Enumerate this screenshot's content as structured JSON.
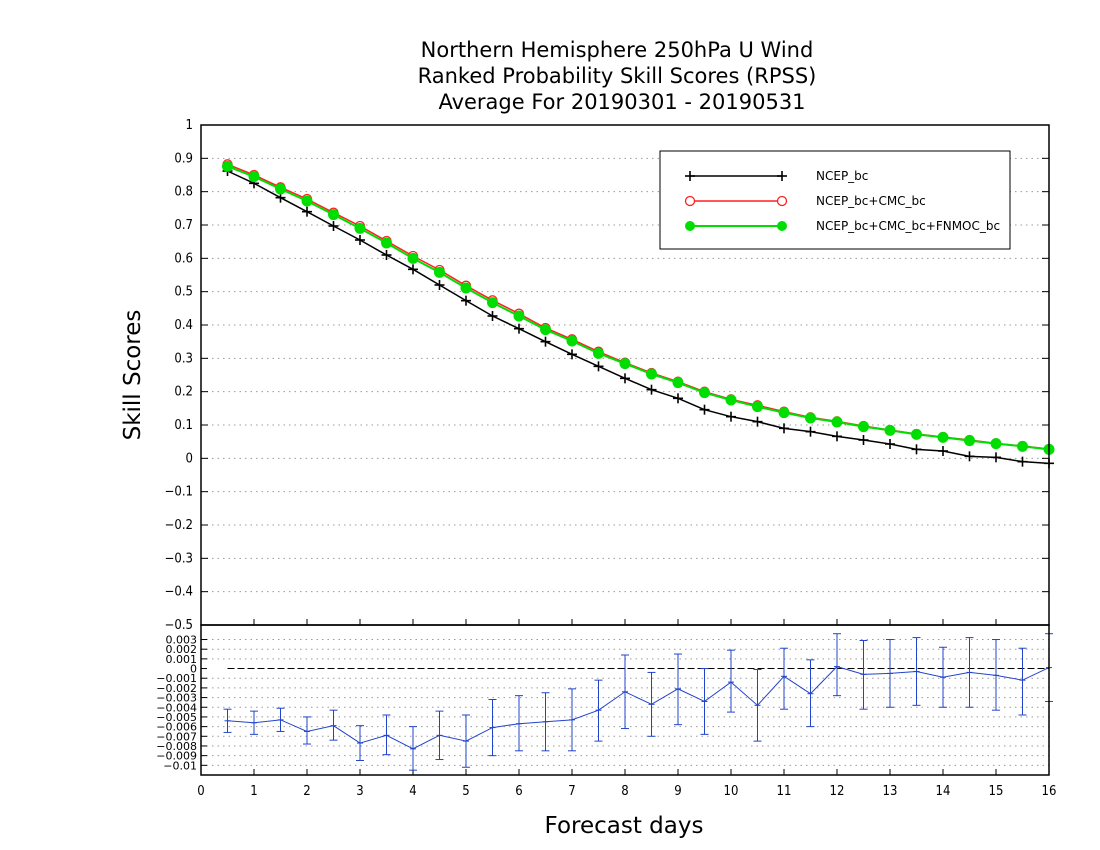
{
  "chart_data": [
    {
      "type": "line",
      "title": [
        "Northern Hemisphere 250hPa U Wind",
        "Ranked Probability Skill Scores (RPSS)",
        "Average For 20190301 - 20190531"
      ],
      "xlabel": "Forecast days",
      "ylabel": "Skill Scores",
      "xlim": [
        0,
        16
      ],
      "ylim": [
        -0.5,
        1
      ],
      "x_ticks": [
        0,
        1,
        2,
        3,
        4,
        5,
        6,
        7,
        8,
        9,
        10,
        11,
        12,
        13,
        14,
        15,
        16
      ],
      "y_ticks": [
        1,
        0.9,
        0.8,
        0.7,
        0.6,
        0.5,
        0.4,
        0.3,
        0.2,
        0.1,
        0,
        -0.1,
        -0.2,
        -0.3,
        -0.4,
        -0.5
      ],
      "grid": true,
      "legend_position": "top-right",
      "x": [
        0.5,
        1,
        1.5,
        2,
        2.5,
        3,
        3.5,
        4,
        4.5,
        5,
        5.5,
        6,
        6.5,
        7,
        7.5,
        8,
        8.5,
        9,
        9.5,
        10,
        10.5,
        11,
        11.5,
        12,
        12.5,
        13,
        13.5,
        14,
        14.5,
        15,
        15.5,
        16
      ],
      "series": [
        {
          "name": "NCEP_bc",
          "color": "#000000",
          "marker": "plus",
          "values": [
            0.862,
            0.825,
            0.782,
            0.74,
            0.697,
            0.655,
            0.61,
            0.567,
            0.52,
            0.473,
            0.427,
            0.389,
            0.35,
            0.312,
            0.276,
            0.24,
            0.206,
            0.18,
            0.146,
            0.125,
            0.11,
            0.09,
            0.08,
            0.066,
            0.055,
            0.043,
            0.027,
            0.022,
            0.006,
            0.003,
            -0.01,
            -0.015
          ]
        },
        {
          "name": "NCEP_bc+CMC_bc",
          "color": "#ff2020",
          "marker": "open-circle",
          "values": [
            0.882,
            0.85,
            0.813,
            0.778,
            0.737,
            0.697,
            0.652,
            0.607,
            0.565,
            0.518,
            0.474,
            0.434,
            0.391,
            0.357,
            0.32,
            0.287,
            0.256,
            0.23,
            0.2,
            0.177,
            0.159,
            0.14,
            0.123,
            0.111,
            0.097,
            0.085,
            0.073,
            0.064,
            0.055,
            0.045,
            0.037,
            0.028
          ]
        },
        {
          "name": "NCEP_bc+CMC_bc+FNMOC_bc",
          "color": "#00dd00",
          "marker": "filled-circle",
          "values": [
            0.876,
            0.845,
            0.808,
            0.772,
            0.731,
            0.69,
            0.646,
            0.6,
            0.558,
            0.511,
            0.467,
            0.427,
            0.386,
            0.352,
            0.315,
            0.284,
            0.253,
            0.227,
            0.197,
            0.175,
            0.155,
            0.137,
            0.121,
            0.109,
            0.095,
            0.084,
            0.072,
            0.063,
            0.053,
            0.044,
            0.036,
            0.027
          ]
        }
      ]
    },
    {
      "type": "line",
      "description_free": true,
      "xlim": [
        0,
        16
      ],
      "ylim": [
        -0.011,
        0.0045
      ],
      "x_ticks": [
        0,
        1,
        2,
        3,
        4,
        5,
        6,
        7,
        8,
        9,
        10,
        11,
        12,
        13,
        14,
        15,
        16
      ],
      "y_ticks": [
        0.003,
        0.002,
        0.001,
        0,
        -0.001,
        -0.002,
        -0.003,
        -0.004,
        -0.005,
        -0.006,
        -0.007,
        -0.008,
        -0.009,
        -0.01
      ],
      "y_tick_labels": [
        "0.003",
        "0.002",
        "0.001",
        "0",
        "−0.001",
        "−0.002",
        "−0.003",
        "−0.004",
        "−0.005",
        "−0.006",
        "−0.007",
        "−0.008",
        "−0.009",
        "−0.01"
      ],
      "top_tick_label": "−0.5",
      "grid": true,
      "reference_line": 0,
      "x": [
        0.5,
        1,
        1.5,
        2,
        2.5,
        3,
        3.5,
        4,
        4.5,
        5,
        5.5,
        6,
        6.5,
        7,
        7.5,
        8,
        8.5,
        9,
        9.5,
        10,
        10.5,
        11,
        11.5,
        12,
        12.5,
        13,
        13.5,
        14,
        14.5,
        15,
        15.5,
        16
      ],
      "series": [
        {
          "color": "#2244cc",
          "values": [
            -0.0054,
            -0.0056,
            -0.0053,
            -0.0065,
            -0.0059,
            -0.0077,
            -0.0069,
            -0.0083,
            -0.0069,
            -0.0075,
            -0.0061,
            -0.0057,
            -0.0055,
            -0.0053,
            -0.0043,
            -0.0024,
            -0.0037,
            -0.0021,
            -0.0034,
            -0.0014,
            -0.0038,
            -0.0008,
            -0.0026,
            0.0002,
            -0.0006,
            -0.0005,
            -0.0003,
            -0.0009,
            -0.0004,
            -0.0007,
            -0.0012,
            0.0001
          ],
          "error_low": [
            -0.0066,
            -0.0068,
            -0.0065,
            -0.0078,
            -0.0074,
            -0.0095,
            -0.0089,
            -0.0105,
            -0.0094,
            -0.0102,
            -0.009,
            -0.0085,
            -0.0085,
            -0.0085,
            -0.0075,
            -0.0062,
            -0.007,
            -0.0058,
            -0.0068,
            -0.0045,
            -0.0075,
            -0.0042,
            -0.006,
            -0.0028,
            -0.0042,
            -0.004,
            -0.0038,
            -0.004,
            -0.004,
            -0.0043,
            -0.0048,
            -0.0034
          ],
          "error_high": [
            -0.0042,
            -0.0044,
            -0.0041,
            -0.005,
            -0.0043,
            -0.0059,
            -0.0048,
            -0.006,
            -0.0044,
            -0.0048,
            -0.0032,
            -0.0028,
            -0.0025,
            -0.0021,
            -0.0012,
            0.0014,
            -0.0004,
            0.0015,
            0.0,
            0.0019,
            -0.0001,
            0.0021,
            0.0009,
            0.0036,
            0.0029,
            0.003,
            0.0032,
            0.0022,
            0.0032,
            0.003,
            0.0021,
            0.0036
          ]
        }
      ]
    }
  ]
}
